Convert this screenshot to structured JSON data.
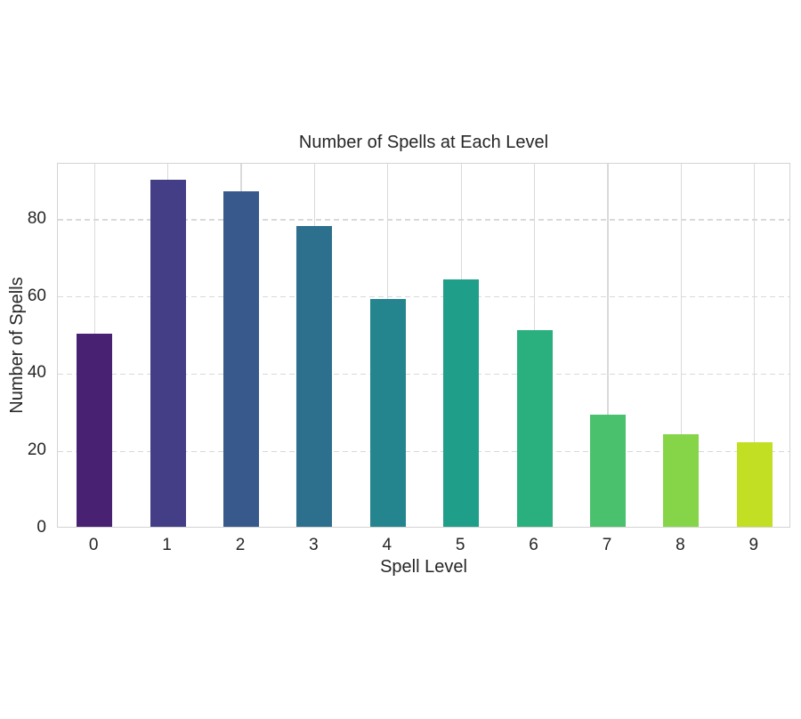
{
  "figure": {
    "background": "#ffffff",
    "text_color": "#262626"
  },
  "chart_data": {
    "type": "bar",
    "title": "Number of Spells at Each Level",
    "xlabel": "Spell Level",
    "ylabel": "Number of Spells",
    "categories": [
      "0",
      "1",
      "2",
      "3",
      "4",
      "5",
      "6",
      "7",
      "8",
      "9"
    ],
    "values": [
      50,
      90,
      87,
      78,
      59,
      64,
      51,
      29,
      24,
      22
    ],
    "bar_colors": [
      "#482173",
      "#433e85",
      "#38598c",
      "#2d708e",
      "#25858e",
      "#1f9e89",
      "#2ab07f",
      "#4ac16d",
      "#86d549",
      "#c2df23"
    ],
    "yticks": [
      0,
      20,
      40,
      60,
      80
    ],
    "ylim": [
      0,
      94.5
    ],
    "grid": {
      "horizontal_style": "dashed",
      "vertical_style": "solid",
      "color": "#d9d9d9"
    },
    "legend": "none"
  }
}
